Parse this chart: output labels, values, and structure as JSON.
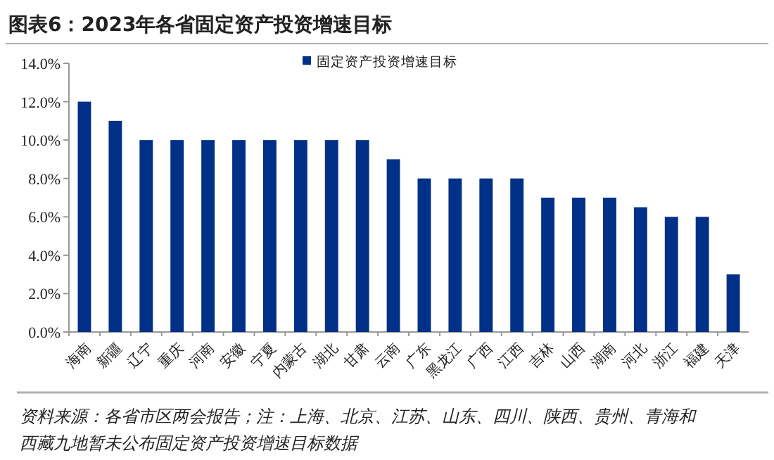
{
  "chart_data": {
    "type": "bar",
    "title": "图表6：2023年各省固定资产投资增速目标",
    "categories": [
      "海南",
      "新疆",
      "辽宁",
      "重庆",
      "河南",
      "安徽",
      "宁夏",
      "内蒙古",
      "湖北",
      "甘肃",
      "云南",
      "广东",
      "黑龙江",
      "广西",
      "江西",
      "吉林",
      "山西",
      "湖南",
      "河北",
      "浙江",
      "福建",
      "天津"
    ],
    "series": [
      {
        "name": "固定资产投资增速目标",
        "color": "#003087",
        "values": [
          12,
          11,
          10,
          10,
          10,
          10,
          10,
          10,
          10,
          10,
          9,
          8,
          8,
          8,
          8,
          7,
          7,
          7,
          6.5,
          6,
          6,
          3
        ]
      }
    ],
    "ylim": [
      0,
      14
    ],
    "yticks": [
      {
        "value": 0,
        "label": "0.0%"
      },
      {
        "value": 2,
        "label": "2.0%"
      },
      {
        "value": 4,
        "label": "4.0%"
      },
      {
        "value": 6,
        "label": "6.0%"
      },
      {
        "value": 8,
        "label": "8.0%"
      },
      {
        "value": 10,
        "label": "10.0%"
      },
      {
        "value": 12,
        "label": "12.0%"
      },
      {
        "value": 14,
        "label": "14.0%"
      }
    ],
    "grid": false,
    "legend": "top",
    "annotations": [
      "资料来源：各省市区两会报告；注：上海、北京、江苏、山东、四川、陕西、贵州、青海和西藏九地暂未公布固定资产投资增速目标数据"
    ]
  }
}
